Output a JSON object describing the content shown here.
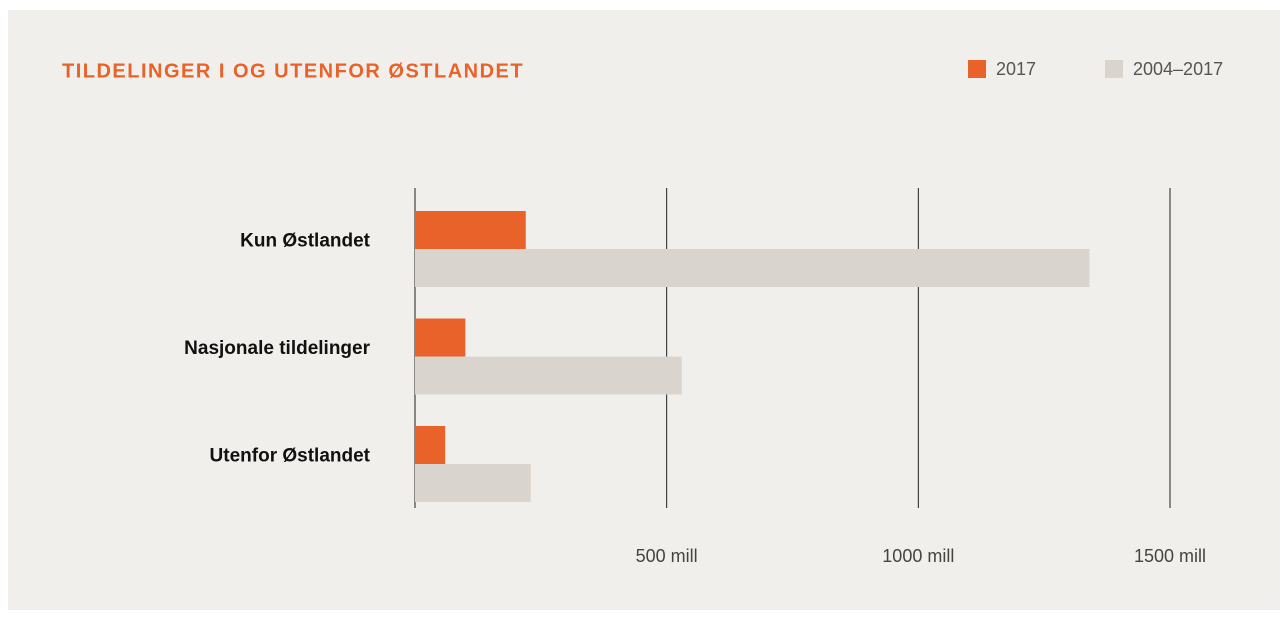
{
  "chart_data": {
    "type": "barh",
    "title": "TILDELINGER I OG UTENFOR ØSTLANDET",
    "categories": [
      "Kun Østlandet",
      "Nasjonale tildelinger",
      "Utenfor Østlandet"
    ],
    "series": [
      {
        "name": "2017",
        "color": "#e8622a",
        "values": [
          220,
          100,
          60
        ]
      },
      {
        "name": "2004–2017",
        "color": "#dad4ce",
        "values": [
          1340,
          530,
          230
        ]
      }
    ],
    "xlim": [
      0,
      1500
    ],
    "xticks": [
      {
        "value": 500,
        "label": "500 mill"
      },
      {
        "value": 1000,
        "label": "1000 mill"
      },
      {
        "value": 1500,
        "label": "1500 mill"
      }
    ],
    "grid": true,
    "legend": "top-right"
  }
}
